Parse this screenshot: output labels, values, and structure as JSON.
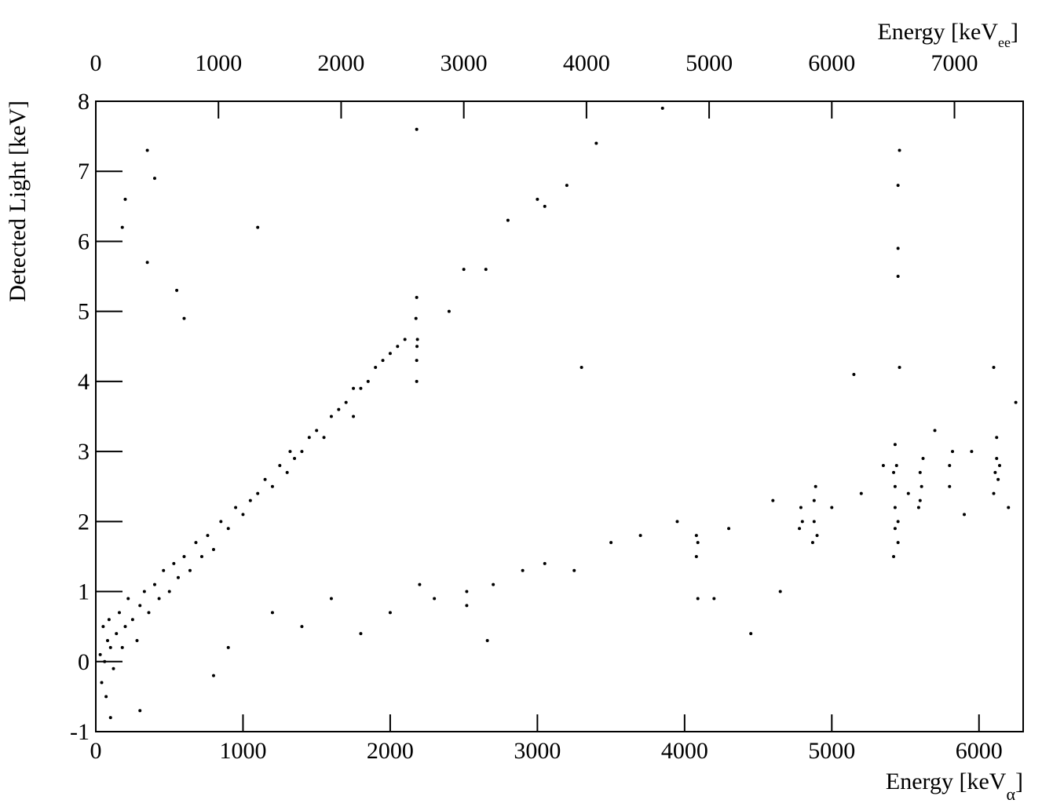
{
  "chart_data": {
    "type": "scatter",
    "xlabel": {
      "text": "Energy [keV",
      "subscript": "α",
      "close": "]"
    },
    "x2label": {
      "text": "Energy [keV",
      "subscript": "ee",
      "close": "]"
    },
    "ylabel": "Detected Light [keV]",
    "xlim": [
      0,
      6300
    ],
    "xticks": [
      0,
      1000,
      2000,
      3000,
      4000,
      5000,
      6000
    ],
    "x2lim": [
      0,
      7560
    ],
    "x2ticks": [
      0,
      1000,
      2000,
      3000,
      4000,
      5000,
      6000,
      7000
    ],
    "ylim": [
      -1,
      8
    ],
    "yticks": [
      -1,
      0,
      1,
      2,
      3,
      4,
      5,
      6,
      7,
      8
    ],
    "series": [
      {
        "color": "#000000",
        "x": [
          30,
          40,
          50,
          60,
          70,
          80,
          90,
          100,
          120,
          140,
          160,
          180,
          200,
          220,
          250,
          280,
          300,
          330,
          360,
          400,
          430,
          460,
          500,
          530,
          560,
          600,
          640,
          680,
          720,
          760,
          800,
          850,
          900,
          950,
          1000,
          1050,
          1100,
          1150,
          1200,
          1250,
          1300,
          1320,
          1350,
          1400,
          1450,
          1500,
          1550,
          1600,
          1650,
          1700,
          1750,
          1750,
          1800,
          1850,
          1900,
          1950,
          2000,
          2050,
          2100,
          2180,
          2180,
          2185,
          2175,
          2180,
          2182,
          2400,
          2500,
          2650,
          2800,
          3000,
          3050,
          3200,
          3400,
          2180,
          3850,
          350,
          400,
          200,
          180,
          350,
          550,
          600,
          1100,
          3300,
          5150,
          1200,
          1400,
          1600,
          1800,
          2000,
          2200,
          2300,
          2520,
          2520,
          2660,
          2700,
          2900,
          3050,
          3250,
          3500,
          3700,
          3950,
          4080,
          4080,
          4090,
          4090,
          4200,
          4300,
          4450,
          4600,
          4650,
          4780,
          4790,
          4800,
          4870,
          4880,
          4880,
          4890,
          4900,
          5000,
          5200,
          5350,
          5420,
          5430,
          5430,
          5430,
          5440,
          5430,
          5450,
          5450,
          5420,
          5450,
          5450,
          5460,
          5450,
          5460,
          5520,
          5600,
          5600,
          5610,
          5620,
          5590,
          5700,
          5800,
          5800,
          5820,
          5900,
          5950,
          6100,
          6110,
          6120,
          6120,
          6130,
          6140,
          6100,
          6250,
          6200,
          100,
          300,
          900,
          800
        ],
        "y": [
          0.1,
          -0.3,
          0.5,
          0.0,
          -0.5,
          0.3,
          0.6,
          0.2,
          -0.1,
          0.4,
          0.7,
          0.2,
          0.5,
          0.9,
          0.6,
          0.3,
          0.8,
          1.0,
          0.7,
          1.1,
          0.9,
          1.3,
          1.0,
          1.4,
          1.2,
          1.5,
          1.3,
          1.7,
          1.5,
          1.8,
          1.6,
          2.0,
          1.9,
          2.2,
          2.1,
          2.3,
          2.4,
          2.6,
          2.5,
          2.8,
          2.7,
          3.0,
          2.9,
          3.0,
          3.2,
          3.3,
          3.2,
          3.5,
          3.6,
          3.7,
          3.9,
          3.5,
          3.9,
          4.0,
          4.2,
          4.3,
          4.4,
          4.5,
          4.6,
          4.0,
          4.3,
          4.6,
          4.9,
          5.2,
          4.5,
          5.0,
          5.6,
          5.6,
          6.3,
          6.6,
          6.5,
          6.8,
          7.4,
          7.6,
          7.9,
          7.3,
          6.9,
          6.6,
          6.2,
          5.7,
          5.3,
          4.9,
          6.2,
          4.2,
          4.1,
          0.7,
          0.5,
          0.9,
          0.4,
          0.7,
          1.1,
          0.9,
          0.8,
          1.0,
          0.3,
          1.1,
          1.3,
          1.4,
          1.3,
          1.7,
          1.8,
          2.0,
          1.5,
          1.8,
          1.7,
          0.9,
          0.9,
          1.9,
          0.4,
          2.3,
          1.0,
          1.9,
          2.2,
          2.0,
          1.7,
          2.0,
          2.3,
          2.5,
          1.8,
          2.2,
          2.4,
          2.8,
          1.5,
          1.9,
          2.2,
          2.5,
          2.8,
          3.1,
          1.7,
          2.0,
          2.7,
          5.5,
          5.9,
          7.3,
          6.8,
          4.2,
          2.4,
          2.3,
          2.7,
          2.5,
          2.9,
          2.2,
          3.3,
          2.5,
          2.8,
          3.0,
          2.1,
          3.0,
          2.4,
          2.7,
          2.9,
          3.2,
          2.6,
          2.8,
          4.2,
          3.7,
          2.2,
          -0.8,
          -0.7,
          0.2,
          -0.2
        ]
      }
    ]
  }
}
